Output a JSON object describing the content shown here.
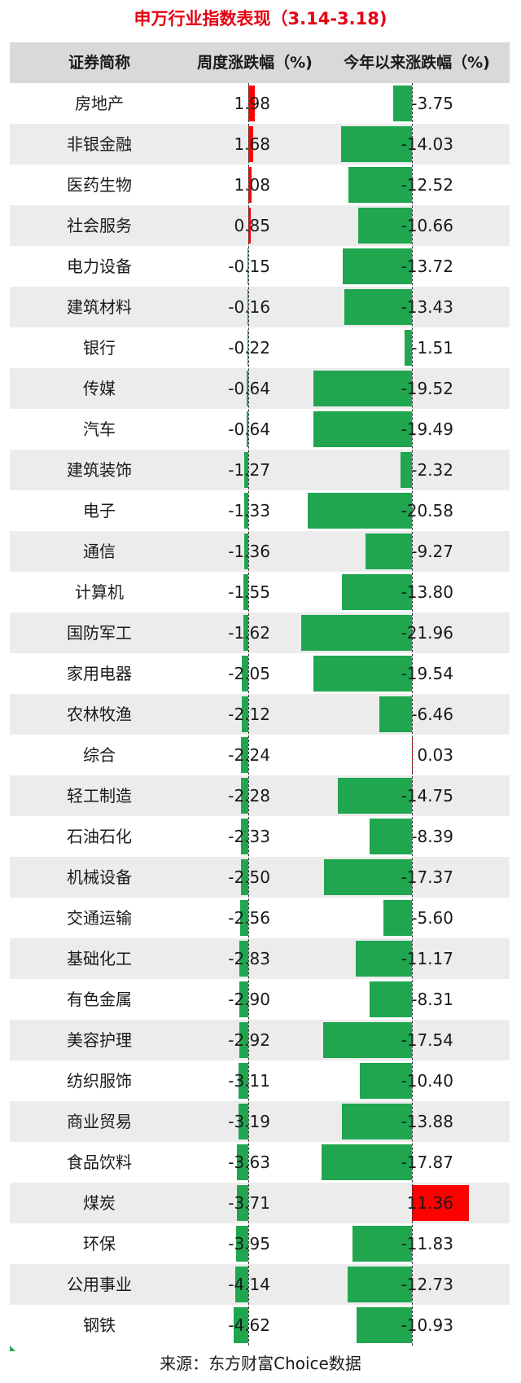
{
  "chart_data": {
    "type": "table",
    "title": "申万行业指数表现（3.14-3.18)",
    "columns": [
      "证券简称",
      "周度涨跌幅（%)",
      "今年以来涨跌幅（%)"
    ],
    "source": "来源：东方财富Choice数据",
    "colors": {
      "positive": "#ff0000",
      "negative": "#1fa64f",
      "title": "#e60012",
      "header_bg": "#d9d9d9",
      "stripe_bg": "#ececec"
    },
    "rows": [
      {
        "name": "房地产",
        "week": "1.98",
        "ytd": "-3.75"
      },
      {
        "name": "非银金融",
        "week": "1.68",
        "ytd": "-14.03"
      },
      {
        "name": "医药生物",
        "week": "1.08",
        "ytd": "-12.52"
      },
      {
        "name": "社会服务",
        "week": "0.85",
        "ytd": "-10.66"
      },
      {
        "name": "电力设备",
        "week": "-0.15",
        "ytd": "-13.72"
      },
      {
        "name": "建筑材料",
        "week": "-0.16",
        "ytd": "-13.43"
      },
      {
        "name": "银行",
        "week": "-0.22",
        "ytd": "-1.51"
      },
      {
        "name": "传媒",
        "week": "-0.64",
        "ytd": "-19.52"
      },
      {
        "name": "汽车",
        "week": "-0.64",
        "ytd": "-19.49"
      },
      {
        "name": "建筑装饰",
        "week": "-1.27",
        "ytd": "-2.32"
      },
      {
        "name": "电子",
        "week": "-1.33",
        "ytd": "-20.58"
      },
      {
        "name": "通信",
        "week": "-1.36",
        "ytd": "-9.27"
      },
      {
        "name": "计算机",
        "week": "-1.55",
        "ytd": "-13.80"
      },
      {
        "name": "国防军工",
        "week": "-1.62",
        "ytd": "-21.96"
      },
      {
        "name": "家用电器",
        "week": "-2.05",
        "ytd": "-19.54"
      },
      {
        "name": "农林牧渔",
        "week": "-2.12",
        "ytd": "-6.46"
      },
      {
        "name": "综合",
        "week": "-2.24",
        "ytd": "0.03"
      },
      {
        "name": "轻工制造",
        "week": "-2.28",
        "ytd": "-14.75"
      },
      {
        "name": "石油石化",
        "week": "-2.33",
        "ytd": "-8.39"
      },
      {
        "name": "机械设备",
        "week": "-2.50",
        "ytd": "-17.37"
      },
      {
        "name": "交通运输",
        "week": "-2.56",
        "ytd": "-5.60"
      },
      {
        "name": "基础化工",
        "week": "-2.83",
        "ytd": "-11.17"
      },
      {
        "name": "有色金属",
        "week": "-2.90",
        "ytd": "-8.31"
      },
      {
        "name": "美容护理",
        "week": "-2.92",
        "ytd": "-17.54"
      },
      {
        "name": "纺织服饰",
        "week": "-3.11",
        "ytd": "-10.40"
      },
      {
        "name": "商业贸易",
        "week": "-3.19",
        "ytd": "-13.88"
      },
      {
        "name": "食品饮料",
        "week": "-3.63",
        "ytd": "-17.87"
      },
      {
        "name": "煤炭",
        "week": "-3.71",
        "ytd": "11.36"
      },
      {
        "name": "环保",
        "week": "-3.95",
        "ytd": "-11.83"
      },
      {
        "name": "公用事业",
        "week": "-4.14",
        "ytd": "-12.73"
      },
      {
        "name": "钢铁",
        "week": "-4.62",
        "ytd": "-10.93"
      }
    ]
  }
}
